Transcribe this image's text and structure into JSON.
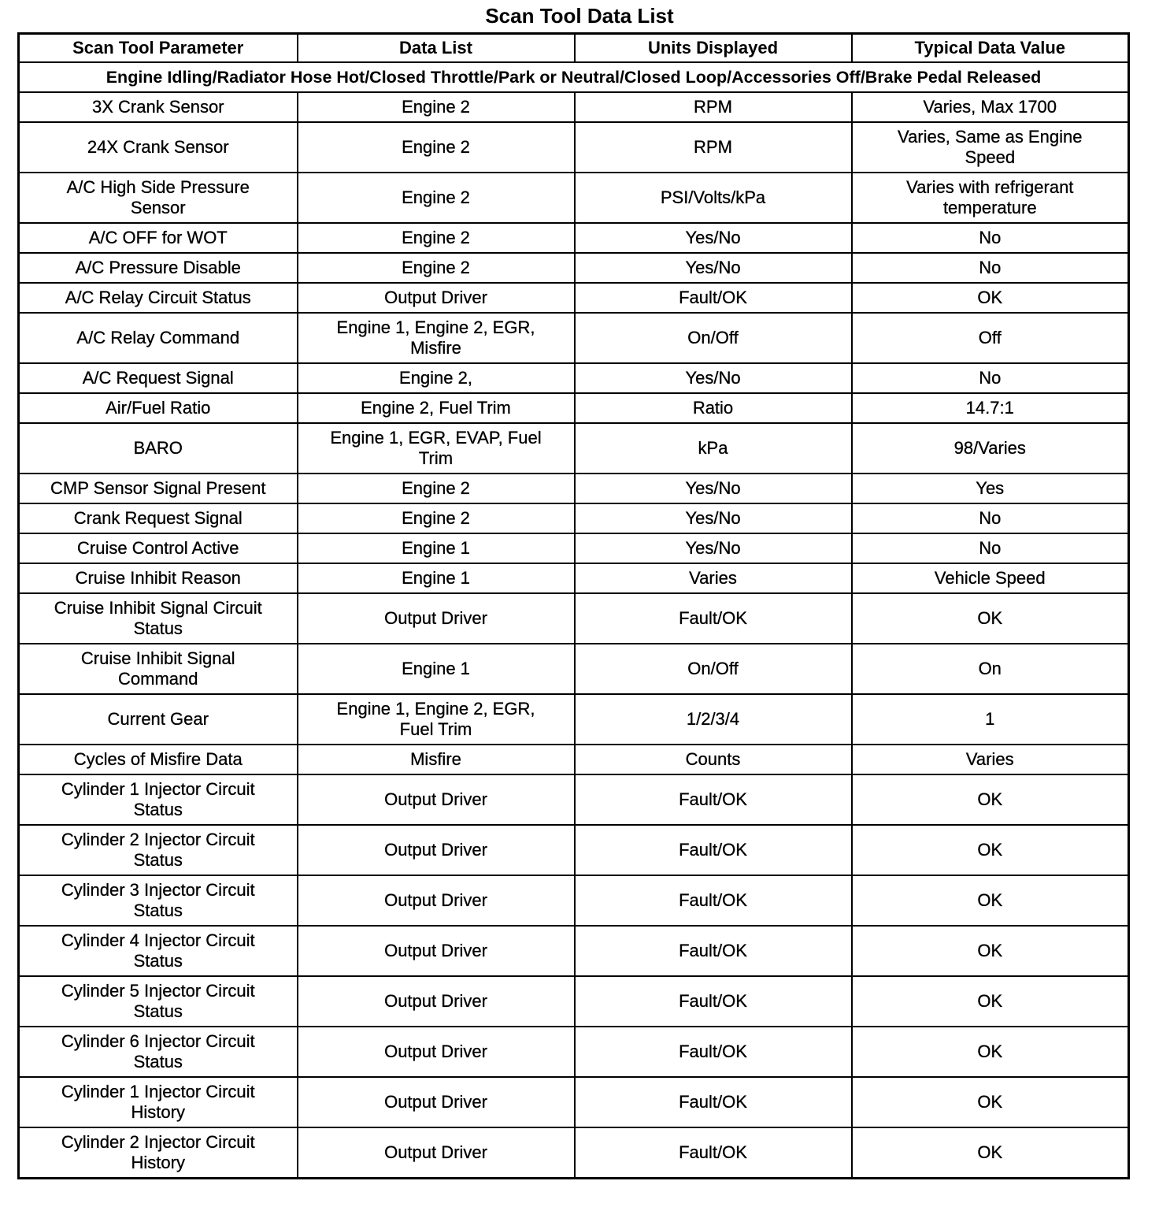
{
  "title": "Scan Tool Data List",
  "table": {
    "columns": [
      "Scan Tool Parameter",
      "Data List",
      "Units Displayed",
      "Typical Data Value"
    ],
    "condition": "Engine Idling/Radiator Hose Hot/Closed Throttle/Park or Neutral/Closed Loop/Accessories Off/Brake Pedal Released",
    "rows": [
      [
        "3X Crank Sensor",
        "Engine 2",
        "RPM",
        "Varies, Max 1700"
      ],
      [
        "24X Crank Sensor",
        "Engine 2",
        "RPM",
        "Varies, Same as Engine Speed"
      ],
      [
        "A/C High Side Pressure Sensor",
        "Engine 2",
        "PSI/Volts/kPa",
        "Varies with refrigerant temperature"
      ],
      [
        "A/C OFF for WOT",
        "Engine 2",
        "Yes/No",
        "No"
      ],
      [
        "A/C Pressure Disable",
        "Engine 2",
        "Yes/No",
        "No"
      ],
      [
        "A/C Relay Circuit Status",
        "Output Driver",
        "Fault/OK",
        "OK"
      ],
      [
        "A/C Relay Command",
        "Engine 1, Engine 2, EGR, Misfire",
        "On/Off",
        "Off"
      ],
      [
        "A/C Request Signal",
        "Engine 2,",
        "Yes/No",
        "No"
      ],
      [
        "Air/Fuel Ratio",
        "Engine 2, Fuel Trim",
        "Ratio",
        "14.7:1"
      ],
      [
        "BARO",
        "Engine 1, EGR, EVAP, Fuel Trim",
        "kPa",
        "98/Varies"
      ],
      [
        "CMP Sensor Signal Present",
        "Engine 2",
        "Yes/No",
        "Yes"
      ],
      [
        "Crank Request Signal",
        "Engine 2",
        "Yes/No",
        "No"
      ],
      [
        "Cruise Control Active",
        "Engine 1",
        "Yes/No",
        "No"
      ],
      [
        "Cruise Inhibit Reason",
        "Engine 1",
        "Varies",
        "Vehicle Speed"
      ],
      [
        "Cruise Inhibit Signal Circuit Status",
        "Output Driver",
        "Fault/OK",
        "OK"
      ],
      [
        "Cruise Inhibit Signal Command",
        "Engine 1",
        "On/Off",
        "On"
      ],
      [
        "Current Gear",
        "Engine 1, Engine 2, EGR, Fuel Trim",
        "1/2/3/4",
        "1"
      ],
      [
        "Cycles of Misfire Data",
        "Misfire",
        "Counts",
        "Varies"
      ],
      [
        "Cylinder 1 Injector Circuit Status",
        "Output Driver",
        "Fault/OK",
        "OK"
      ],
      [
        "Cylinder 2 Injector Circuit Status",
        "Output Driver",
        "Fault/OK",
        "OK"
      ],
      [
        "Cylinder 3 Injector Circuit Status",
        "Output Driver",
        "Fault/OK",
        "OK"
      ],
      [
        "Cylinder 4 Injector Circuit Status",
        "Output Driver",
        "Fault/OK",
        "OK"
      ],
      [
        "Cylinder 5 Injector Circuit Status",
        "Output Driver",
        "Fault/OK",
        "OK"
      ],
      [
        "Cylinder 6 Injector Circuit Status",
        "Output Driver",
        "Fault/OK",
        "OK"
      ],
      [
        "Cylinder 1 Injector Circuit History",
        "Output Driver",
        "Fault/OK",
        "OK"
      ],
      [
        "Cylinder 2 Injector Circuit History",
        "Output Driver",
        "Fault/OK",
        "OK"
      ]
    ]
  }
}
